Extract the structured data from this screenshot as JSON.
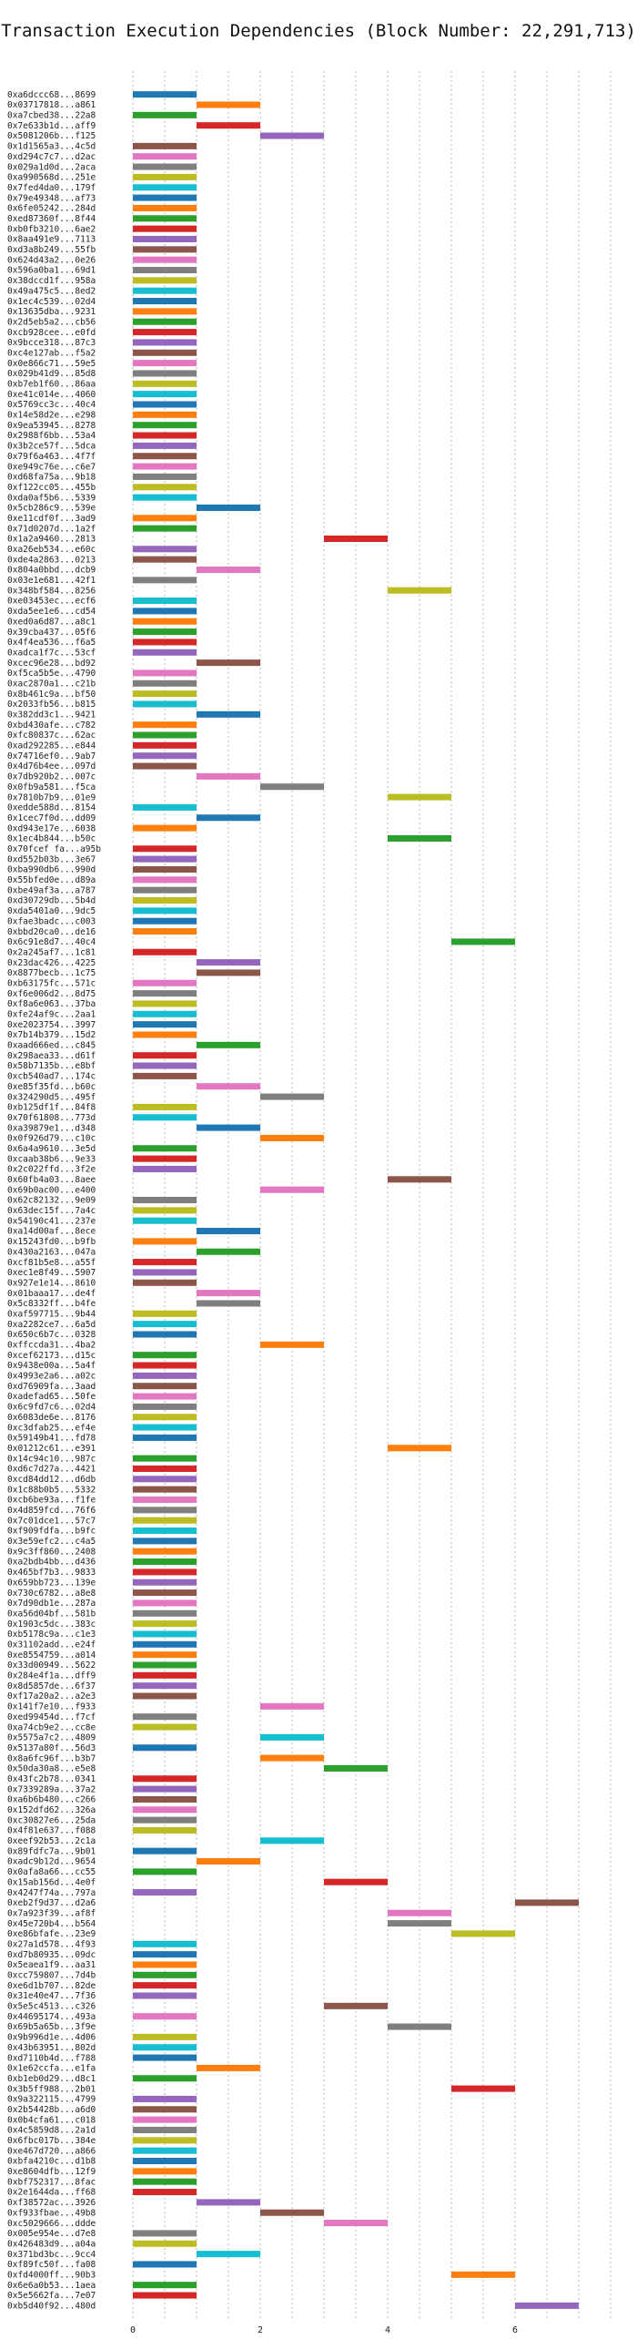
{
  "chart_data": {
    "type": "gantt",
    "title": "Transaction Execution Dependencies (Block Number: 22,291,713)",
    "xticks": [
      0,
      2,
      4,
      6
    ],
    "xlim": [
      0,
      7.5
    ],
    "grid": "vertical dotted at every 0.5",
    "palette": [
      "#1f77b4",
      "#ff7f0e",
      "#2ca02c",
      "#d62728",
      "#9467bd",
      "#8c564b",
      "#e377c2",
      "#7f7f7f",
      "#bcbd22",
      "#17becf"
    ],
    "tasks": [
      {
        "tx": "0xa6dccc68...8699",
        "start": 0,
        "end": 1
      },
      {
        "tx": "0x03717818...a861",
        "start": 1,
        "end": 2
      },
      {
        "tx": "0xa7cbed38...22a8",
        "start": 0,
        "end": 1
      },
      {
        "tx": "0x7e633b1d...aff9",
        "start": 1,
        "end": 2
      },
      {
        "tx": "0x5081206b...f125",
        "start": 2,
        "end": 3
      },
      {
        "tx": "0x1d1565a3...4c5d",
        "start": 0,
        "end": 1
      },
      {
        "tx": "0xd294c7c7...d2ac",
        "start": 0,
        "end": 1
      },
      {
        "tx": "0x029a1d0d...2aca",
        "start": 0,
        "end": 1
      },
      {
        "tx": "0xa990568d...251e",
        "start": 0,
        "end": 1
      },
      {
        "tx": "0x7fed4da0...179f",
        "start": 0,
        "end": 1
      },
      {
        "tx": "0x79e49348...af73",
        "start": 0,
        "end": 1
      },
      {
        "tx": "0x6fe05242...284d",
        "start": 0,
        "end": 1
      },
      {
        "tx": "0xed87360f...8f44",
        "start": 0,
        "end": 1
      },
      {
        "tx": "0xb0fb3210...6ae2",
        "start": 0,
        "end": 1
      },
      {
        "tx": "0x8aa491e9...7113",
        "start": 0,
        "end": 1
      },
      {
        "tx": "0xd3a8b249...55fb",
        "start": 0,
        "end": 1
      },
      {
        "tx": "0x624d43a2...0e26",
        "start": 0,
        "end": 1
      },
      {
        "tx": "0x596a0ba1...69d1",
        "start": 0,
        "end": 1
      },
      {
        "tx": "0x38dccd1f...958a",
        "start": 0,
        "end": 1
      },
      {
        "tx": "0x49a475c5...8ed2",
        "start": 0,
        "end": 1
      },
      {
        "tx": "0x1ec4c539...02d4",
        "start": 0,
        "end": 1
      },
      {
        "tx": "0x13635dba...9231",
        "start": 0,
        "end": 1
      },
      {
        "tx": "0x2d5eb5a2...cb56",
        "start": 0,
        "end": 1
      },
      {
        "tx": "0xcb928cee...e0fd",
        "start": 0,
        "end": 1
      },
      {
        "tx": "0x9bcce318...87c3",
        "start": 0,
        "end": 1
      },
      {
        "tx": "0xc4e127ab...f5a2",
        "start": 0,
        "end": 1
      },
      {
        "tx": "0x0e866c71...59e5",
        "start": 0,
        "end": 1
      },
      {
        "tx": "0x029b41d9...85d8",
        "start": 0,
        "end": 1
      },
      {
        "tx": "0xb7eb1f60...86aa",
        "start": 0,
        "end": 1
      },
      {
        "tx": "0xe41c014e...4060",
        "start": 0,
        "end": 1
      },
      {
        "tx": "0x5769cc3c...40c4",
        "start": 0,
        "end": 1
      },
      {
        "tx": "0x14e58d2e...e298",
        "start": 0,
        "end": 1
      },
      {
        "tx": "0x9ea53945...8278",
        "start": 0,
        "end": 1
      },
      {
        "tx": "0x2988f6bb...53a4",
        "start": 0,
        "end": 1
      },
      {
        "tx": "0x3b2ce57f...5dca",
        "start": 0,
        "end": 1
      },
      {
        "tx": "0x79f6a463...4f7f",
        "start": 0,
        "end": 1
      },
      {
        "tx": "0xe949c76e...c6e7",
        "start": 0,
        "end": 1
      },
      {
        "tx": "0xd68fa75a...9b18",
        "start": 0,
        "end": 1
      },
      {
        "tx": "0xf122cc05...455b",
        "start": 0,
        "end": 1
      },
      {
        "tx": "0xda0af5b6...5339",
        "start": 0,
        "end": 1
      },
      {
        "tx": "0x5cb286c9...539e",
        "start": 1,
        "end": 2
      },
      {
        "tx": "0xe11cdf0f...3ad9",
        "start": 0,
        "end": 1
      },
      {
        "tx": "0x71d0207d...1a2f",
        "start": 0,
        "end": 1
      },
      {
        "tx": "0x1a2a9460...2813",
        "start": 3,
        "end": 4
      },
      {
        "tx": "0xa26eb534...e60c",
        "start": 0,
        "end": 1
      },
      {
        "tx": "0xde4a2863...0213",
        "start": 0,
        "end": 1
      },
      {
        "tx": "0x804a0bbd...dcb9",
        "start": 1,
        "end": 2
      },
      {
        "tx": "0x03e1e681...42f1",
        "start": 0,
        "end": 1
      },
      {
        "tx": "0x348bf584...8256",
        "start": 4,
        "end": 5
      },
      {
        "tx": "0xe03453ec...ecf6",
        "start": 0,
        "end": 1
      },
      {
        "tx": "0xda5ee1e6...cd54",
        "start": 0,
        "end": 1
      },
      {
        "tx": "0xed0a6d87...a8c1",
        "start": 0,
        "end": 1
      },
      {
        "tx": "0x39cba437...05f6",
        "start": 0,
        "end": 1
      },
      {
        "tx": "0x4f4ea536...f6a5",
        "start": 0,
        "end": 1
      },
      {
        "tx": "0xadca1f7c...53cf",
        "start": 0,
        "end": 1
      },
      {
        "tx": "0xcec96e28...bd92",
        "start": 1,
        "end": 2
      },
      {
        "tx": "0xf5ca5b5e...4790",
        "start": 0,
        "end": 1
      },
      {
        "tx": "0xac2870a1...c21b",
        "start": 0,
        "end": 1
      },
      {
        "tx": "0x8b461c9a...bf50",
        "start": 0,
        "end": 1
      },
      {
        "tx": "0x2033fb56...b815",
        "start": 0,
        "end": 1
      },
      {
        "tx": "0x382dd3c1...9421",
        "start": 1,
        "end": 2
      },
      {
        "tx": "0xbd430afe...c782",
        "start": 0,
        "end": 1
      },
      {
        "tx": "0xfc80837c...62ac",
        "start": 0,
        "end": 1
      },
      {
        "tx": "0xad292285...e844",
        "start": 0,
        "end": 1
      },
      {
        "tx": "0x74716ef0...9ab7",
        "start": 0,
        "end": 1
      },
      {
        "tx": "0x4d76b4ee...097d",
        "start": 0,
        "end": 1
      },
      {
        "tx": "0x7db920b2...007c",
        "start": 1,
        "end": 2
      },
      {
        "tx": "0x0fb9a581...f5ca",
        "start": 2,
        "end": 3
      },
      {
        "tx": "0x7810b7b9...01e9",
        "start": 4,
        "end": 5
      },
      {
        "tx": "0xedde588d...8154",
        "start": 0,
        "end": 1
      },
      {
        "tx": "0x1cec7f0d...dd09",
        "start": 1,
        "end": 2
      },
      {
        "tx": "0xd943e17e...6038",
        "start": 0,
        "end": 1
      },
      {
        "tx": "0x1ec4b844...b50c",
        "start": 4,
        "end": 5
      },
      {
        "tx": "0x70fcef fa...a95b",
        "start": 0,
        "end": 1
      },
      {
        "tx": "0xd552b03b...3e67",
        "start": 0,
        "end": 1
      },
      {
        "tx": "0xba990db6...990d",
        "start": 0,
        "end": 1
      },
      {
        "tx": "0x55bfed0e...d89a",
        "start": 0,
        "end": 1
      },
      {
        "tx": "0xbe49af3a...a787",
        "start": 0,
        "end": 1
      },
      {
        "tx": "0xd30729db...5b4d",
        "start": 0,
        "end": 1
      },
      {
        "tx": "0xda5401a0...9dc5",
        "start": 0,
        "end": 1
      },
      {
        "tx": "0xfae3badc...c003",
        "start": 0,
        "end": 1
      },
      {
        "tx": "0xbbd20ca0...de16",
        "start": 0,
        "end": 1
      },
      {
        "tx": "0x6c91e8d7...40c4",
        "start": 5,
        "end": 6
      },
      {
        "tx": "0x2a245af7...1c81",
        "start": 0,
        "end": 1
      },
      {
        "tx": "0x23dac426...4225",
        "start": 1,
        "end": 2
      },
      {
        "tx": "0x8877becb...1c75",
        "start": 1,
        "end": 2
      },
      {
        "tx": "0xb63175fc...571c",
        "start": 0,
        "end": 1
      },
      {
        "tx": "0xf6e006d2...8d75",
        "start": 0,
        "end": 1
      },
      {
        "tx": "0xf8a6e063...37ba",
        "start": 0,
        "end": 1
      },
      {
        "tx": "0xfe24af9c...2aa1",
        "start": 0,
        "end": 1
      },
      {
        "tx": "0xe2023754...3997",
        "start": 0,
        "end": 1
      },
      {
        "tx": "0x7b14b379...15d2",
        "start": 0,
        "end": 1
      },
      {
        "tx": "0xaad666ed...c845",
        "start": 1,
        "end": 2
      },
      {
        "tx": "0x298aea33...d61f",
        "start": 0,
        "end": 1
      },
      {
        "tx": "0x58b7135b...e8bf",
        "start": 0,
        "end": 1
      },
      {
        "tx": "0xcb540ad7...174c",
        "start": 0,
        "end": 1
      },
      {
        "tx": "0xe85f35fd...b60c",
        "start": 1,
        "end": 2
      },
      {
        "tx": "0x324290d5...495f",
        "start": 2,
        "end": 3
      },
      {
        "tx": "0xb125df1f...84f8",
        "start": 0,
        "end": 1
      },
      {
        "tx": "0x70f61808...773d",
        "start": 0,
        "end": 1
      },
      {
        "tx": "0xa39879e1...d348",
        "start": 1,
        "end": 2
      },
      {
        "tx": "0x0f926d79...c10c",
        "start": 2,
        "end": 3
      },
      {
        "tx": "0x6a4a9610...3e5d",
        "start": 0,
        "end": 1
      },
      {
        "tx": "0xcaab38b6...9e33",
        "start": 0,
        "end": 1
      },
      {
        "tx": "0x2c022ffd...3f2e",
        "start": 0,
        "end": 1
      },
      {
        "tx": "0x60fb4a03...8aee",
        "start": 4,
        "end": 5
      },
      {
        "tx": "0x69b0ac00...e400",
        "start": 2,
        "end": 3
      },
      {
        "tx": "0x62c82132...9e09",
        "start": 0,
        "end": 1
      },
      {
        "tx": "0x63dec15f...7a4c",
        "start": 0,
        "end": 1
      },
      {
        "tx": "0x54190c41...237e",
        "start": 0,
        "end": 1
      },
      {
        "tx": "0xa14d00af...8ece",
        "start": 1,
        "end": 2
      },
      {
        "tx": "0x15243fd0...b9fb",
        "start": 0,
        "end": 1
      },
      {
        "tx": "0x430a2163...047a",
        "start": 1,
        "end": 2
      },
      {
        "tx": "0xcf81b5e8...a55f",
        "start": 0,
        "end": 1
      },
      {
        "tx": "0xec1e8f49...5907",
        "start": 0,
        "end": 1
      },
      {
        "tx": "0x927e1e14...8610",
        "start": 0,
        "end": 1
      },
      {
        "tx": "0x01baaa17...de4f",
        "start": 1,
        "end": 2
      },
      {
        "tx": "0x5c8332ff...b4fe",
        "start": 1,
        "end": 2
      },
      {
        "tx": "0xaf597715...9b44",
        "start": 0,
        "end": 1
      },
      {
        "tx": "0xa2282ce7...6a5d",
        "start": 0,
        "end": 1
      },
      {
        "tx": "0x650c6b7c...0328",
        "start": 0,
        "end": 1
      },
      {
        "tx": "0xffccda31...4ba2",
        "start": 2,
        "end": 3
      },
      {
        "tx": "0xcef62173...d15c",
        "start": 0,
        "end": 1
      },
      {
        "tx": "0x9438e00a...5a4f",
        "start": 0,
        "end": 1
      },
      {
        "tx": "0x4993e2a6...a02c",
        "start": 0,
        "end": 1
      },
      {
        "tx": "0xd76909fa...3aad",
        "start": 0,
        "end": 1
      },
      {
        "tx": "0xadefad65...50fe",
        "start": 0,
        "end": 1
      },
      {
        "tx": "0x6c9fd7c6...02d4",
        "start": 0,
        "end": 1
      },
      {
        "tx": "0x6083de6e...8176",
        "start": 0,
        "end": 1
      },
      {
        "tx": "0xc3dfab25...ef4e",
        "start": 0,
        "end": 1
      },
      {
        "tx": "0x59149b41...fd78",
        "start": 0,
        "end": 1
      },
      {
        "tx": "0x01212c61...e391",
        "start": 4,
        "end": 5
      },
      {
        "tx": "0x14c94c10...987c",
        "start": 0,
        "end": 1
      },
      {
        "tx": "0xd6c7d27a...4421",
        "start": 0,
        "end": 1
      },
      {
        "tx": "0xcd84dd12...d6db",
        "start": 0,
        "end": 1
      },
      {
        "tx": "0x1c88b0b5...5332",
        "start": 0,
        "end": 1
      },
      {
        "tx": "0xcb6be93a...f1fe",
        "start": 0,
        "end": 1
      },
      {
        "tx": "0x4d859fcd...76f6",
        "start": 0,
        "end": 1
      },
      {
        "tx": "0x7c01dce1...57c7",
        "start": 0,
        "end": 1
      },
      {
        "tx": "0xf909fdfa...b9fc",
        "start": 0,
        "end": 1
      },
      {
        "tx": "0x3e59efc2...c4a5",
        "start": 0,
        "end": 1
      },
      {
        "tx": "0x9c3ff860...2408",
        "start": 0,
        "end": 1
      },
      {
        "tx": "0xa2bdb4bb...d436",
        "start": 0,
        "end": 1
      },
      {
        "tx": "0x465bf7b3...9833",
        "start": 0,
        "end": 1
      },
      {
        "tx": "0x659bb723...139e",
        "start": 0,
        "end": 1
      },
      {
        "tx": "0x730c6782...a8e8",
        "start": 0,
        "end": 1
      },
      {
        "tx": "0x7d90db1e...287a",
        "start": 0,
        "end": 1
      },
      {
        "tx": "0xa56d04bf...581b",
        "start": 0,
        "end": 1
      },
      {
        "tx": "0x1903c5dc...383c",
        "start": 0,
        "end": 1
      },
      {
        "tx": "0xb5178c9a...c1e3",
        "start": 0,
        "end": 1
      },
      {
        "tx": "0x31102add...e24f",
        "start": 0,
        "end": 1
      },
      {
        "tx": "0xe8554759...a014",
        "start": 0,
        "end": 1
      },
      {
        "tx": "0x33d00949...5622",
        "start": 0,
        "end": 1
      },
      {
        "tx": "0x284e4f1a...dff9",
        "start": 0,
        "end": 1
      },
      {
        "tx": "0x8d5857de...6f37",
        "start": 0,
        "end": 1
      },
      {
        "tx": "0xf17a20a2...a2e3",
        "start": 0,
        "end": 1
      },
      {
        "tx": "0x141f7e10...f933",
        "start": 2,
        "end": 3
      },
      {
        "tx": "0xed99454d...f7cf",
        "start": 0,
        "end": 1
      },
      {
        "tx": "0xa74cb9e2...cc8e",
        "start": 0,
        "end": 1
      },
      {
        "tx": "0x5575a7c2...4809",
        "start": 2,
        "end": 3
      },
      {
        "tx": "0x5137a80f...56d3",
        "start": 0,
        "end": 1
      },
      {
        "tx": "0x8a6fc96f...b3b7",
        "start": 2,
        "end": 3
      },
      {
        "tx": "0x50da30a8...e5e8",
        "start": 3,
        "end": 4
      },
      {
        "tx": "0x43fc2b78...0341",
        "start": 0,
        "end": 1
      },
      {
        "tx": "0x7339289a...37a2",
        "start": 0,
        "end": 1
      },
      {
        "tx": "0xa6b6b480...c266",
        "start": 0,
        "end": 1
      },
      {
        "tx": "0x152dfd62...326a",
        "start": 0,
        "end": 1
      },
      {
        "tx": "0xc30827e6...25da",
        "start": 0,
        "end": 1
      },
      {
        "tx": "0x4f81e637...f088",
        "start": 0,
        "end": 1
      },
      {
        "tx": "0xeef92b53...2c1a",
        "start": 2,
        "end": 3
      },
      {
        "tx": "0x89fdfc7a...9b01",
        "start": 0,
        "end": 1
      },
      {
        "tx": "0xadc9b12d...9654",
        "start": 1,
        "end": 2
      },
      {
        "tx": "0x0afa8a66...cc55",
        "start": 0,
        "end": 1
      },
      {
        "tx": "0x15ab156d...4e0f",
        "start": 3,
        "end": 4
      },
      {
        "tx": "0x4247f74a...797a",
        "start": 0,
        "end": 1
      },
      {
        "tx": "0xeb2f9d37...d2a6",
        "start": 6,
        "end": 7
      },
      {
        "tx": "0x7a923f39...af8f",
        "start": 4,
        "end": 5
      },
      {
        "tx": "0x45e720b4...b564",
        "start": 4,
        "end": 5
      },
      {
        "tx": "0xe86bfafe...23e9",
        "start": 5,
        "end": 6
      },
      {
        "tx": "0x27a1d578...4f93",
        "start": 0,
        "end": 1
      },
      {
        "tx": "0xd7b80935...09dc",
        "start": 0,
        "end": 1
      },
      {
        "tx": "0x5eaea1f9...aa31",
        "start": 0,
        "end": 1
      },
      {
        "tx": "0xcc759807...7d4b",
        "start": 0,
        "end": 1
      },
      {
        "tx": "0xe6d1b707...82de",
        "start": 0,
        "end": 1
      },
      {
        "tx": "0x31e40e47...7f36",
        "start": 0,
        "end": 1
      },
      {
        "tx": "0x5e5c4513...c326",
        "start": 3,
        "end": 4
      },
      {
        "tx": "0x44695174...493a",
        "start": 0,
        "end": 1
      },
      {
        "tx": "0x69b5a65b...3f9e",
        "start": 4,
        "end": 5
      },
      {
        "tx": "0x9b996d1e...4d06",
        "start": 0,
        "end": 1
      },
      {
        "tx": "0x43b63951...802d",
        "start": 0,
        "end": 1
      },
      {
        "tx": "0xd7110b4d...f788",
        "start": 0,
        "end": 1
      },
      {
        "tx": "0x1e62ccfa...e1fa",
        "start": 1,
        "end": 2
      },
      {
        "tx": "0xb1eb0d29...d8c1",
        "start": 0,
        "end": 1
      },
      {
        "tx": "0x3b5ff988...2b01",
        "start": 5,
        "end": 6
      },
      {
        "tx": "0x9a322115...4799",
        "start": 0,
        "end": 1
      },
      {
        "tx": "0x2b54428b...a6d0",
        "start": 0,
        "end": 1
      },
      {
        "tx": "0x0b4cfa61...c018",
        "start": 0,
        "end": 1
      },
      {
        "tx": "0x4c5859d8...2a1d",
        "start": 0,
        "end": 1
      },
      {
        "tx": "0x6fbc017b...384e",
        "start": 0,
        "end": 1
      },
      {
        "tx": "0xe467d720...a866",
        "start": 0,
        "end": 1
      },
      {
        "tx": "0xbfa4210c...d1b8",
        "start": 0,
        "end": 1
      },
      {
        "tx": "0xe8604dfb...12f9",
        "start": 0,
        "end": 1
      },
      {
        "tx": "0xbf752317...8fac",
        "start": 0,
        "end": 1
      },
      {
        "tx": "0x2e1644da...ff68",
        "start": 0,
        "end": 1
      },
      {
        "tx": "0xf38572ac...3926",
        "start": 1,
        "end": 2
      },
      {
        "tx": "0xf933fbae...49b8",
        "start": 2,
        "end": 3
      },
      {
        "tx": "0xc5029666...ddde",
        "start": 3,
        "end": 4
      },
      {
        "tx": "0x005e954e...d7e8",
        "start": 0,
        "end": 1
      },
      {
        "tx": "0x426483d9...a04a",
        "start": 0,
        "end": 1
      },
      {
        "tx": "0x371bd3bc...9cc4",
        "start": 1,
        "end": 2
      },
      {
        "tx": "0xf89fc50f...fa08",
        "start": 0,
        "end": 1
      },
      {
        "tx": "0xfd4000ff...90b3",
        "start": 5,
        "end": 6
      },
      {
        "tx": "0x6e6a0b53...1aea",
        "start": 0,
        "end": 1
      },
      {
        "tx": "0x5e5662fa...7e07",
        "start": 0,
        "end": 1
      },
      {
        "tx": "0xb5d40f92...480d",
        "start": 6,
        "end": 7
      }
    ]
  }
}
